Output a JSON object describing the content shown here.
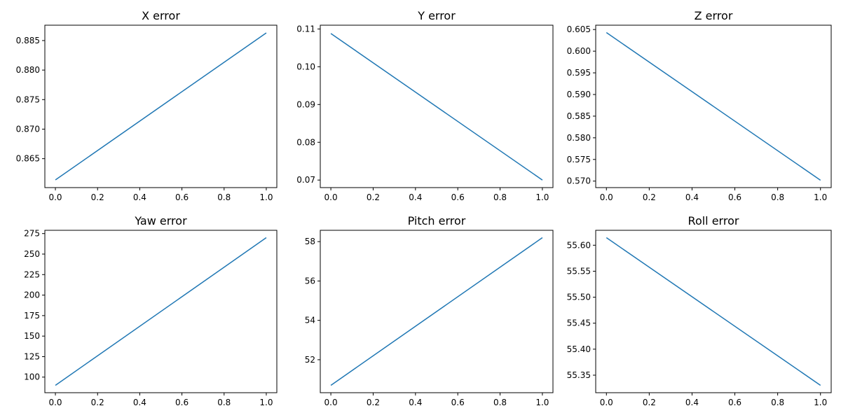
{
  "colors": {
    "series": "#1f77b4",
    "frame": "#000000",
    "background": "#ffffff"
  },
  "chart_data": [
    {
      "type": "line",
      "title": "X error",
      "x": [
        0,
        1
      ],
      "y": [
        0.8614,
        0.8863
      ],
      "xlim": [
        -0.05,
        1.05
      ],
      "ylim": [
        0.8601,
        0.8876
      ],
      "xticks": [
        "0.0",
        "0.2",
        "0.4",
        "0.6",
        "0.8",
        "1.0"
      ],
      "yticks": [
        "0.865",
        "0.870",
        "0.875",
        "0.880",
        "0.885"
      ]
    },
    {
      "type": "line",
      "title": "Y error",
      "x": [
        0,
        1
      ],
      "y": [
        0.1088,
        0.07
      ],
      "xlim": [
        -0.05,
        1.05
      ],
      "ylim": [
        0.068,
        0.111
      ],
      "xticks": [
        "0.0",
        "0.2",
        "0.4",
        "0.6",
        "0.8",
        "1.0"
      ],
      "yticks": [
        "0.07",
        "0.08",
        "0.09",
        "0.10",
        "0.11"
      ]
    },
    {
      "type": "line",
      "title": "Z error",
      "x": [
        0,
        1
      ],
      "y": [
        0.6043,
        0.5702
      ],
      "xlim": [
        -0.05,
        1.05
      ],
      "ylim": [
        0.5685,
        0.606
      ],
      "xticks": [
        "0.0",
        "0.2",
        "0.4",
        "0.6",
        "0.8",
        "1.0"
      ],
      "yticks": [
        "0.570",
        "0.575",
        "0.580",
        "0.585",
        "0.590",
        "0.595",
        "0.600",
        "0.605"
      ]
    },
    {
      "type": "line",
      "title": "Yaw error",
      "x": [
        0,
        1
      ],
      "y": [
        90,
        270
      ],
      "xlim": [
        -0.05,
        1.05
      ],
      "ylim": [
        81,
        279
      ],
      "xticks": [
        "0.0",
        "0.2",
        "0.4",
        "0.6",
        "0.8",
        "1.0"
      ],
      "yticks": [
        "100",
        "125",
        "150",
        "175",
        "200",
        "225",
        "250",
        "275"
      ]
    },
    {
      "type": "line",
      "title": "Pitch error",
      "x": [
        0,
        1
      ],
      "y": [
        50.7,
        58.2
      ],
      "xlim": [
        -0.05,
        1.05
      ],
      "ylim": [
        50.325,
        58.575
      ],
      "xticks": [
        "0.0",
        "0.2",
        "0.4",
        "0.6",
        "0.8",
        "1.0"
      ],
      "yticks": [
        "52",
        "54",
        "56",
        "58"
      ]
    },
    {
      "type": "line",
      "title": "Roll error",
      "x": [
        0,
        1
      ],
      "y": [
        55.6145,
        55.3305
      ],
      "xlim": [
        -0.05,
        1.05
      ],
      "ylim": [
        55.3163,
        55.6287
      ],
      "xticks": [
        "0.0",
        "0.2",
        "0.4",
        "0.6",
        "0.8",
        "1.0"
      ],
      "yticks": [
        "55.35",
        "55.40",
        "55.45",
        "55.50",
        "55.55",
        "55.60"
      ]
    }
  ]
}
